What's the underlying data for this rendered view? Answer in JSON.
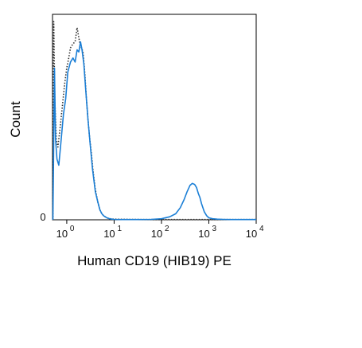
{
  "chart_data": {
    "type": "line",
    "title": "",
    "xlabel": "Human CD19 (HIB19) PE",
    "ylabel": "Count",
    "x_scale": "log",
    "xlim": [
      0.5,
      10000
    ],
    "ylim": [
      0,
      100
    ],
    "legend": "none",
    "x_ticks": [
      {
        "base": "10",
        "exp": "0",
        "value": 1
      },
      {
        "base": "10",
        "exp": "1",
        "value": 10
      },
      {
        "base": "10",
        "exp": "2",
        "value": 100
      },
      {
        "base": "10",
        "exp": "3",
        "value": 1000
      },
      {
        "base": "10",
        "exp": "4",
        "value": 10000
      }
    ],
    "y_ticks": [
      {
        "label": "0",
        "value": 0
      }
    ],
    "series": [
      {
        "color": "#1b7fd6",
        "style": "solid",
        "x": [
          0.51,
          0.55,
          0.58,
          0.62,
          0.68,
          0.75,
          0.85,
          0.95,
          1.05,
          1.2,
          1.35,
          1.5,
          1.65,
          1.8,
          1.95,
          2.1,
          2.3,
          2.5,
          2.8,
          3.1,
          3.5,
          4,
          4.5,
          5,
          5.5,
          6,
          6.5,
          7,
          7.5,
          8,
          9,
          10,
          15,
          30,
          60,
          100,
          150,
          200,
          250,
          300,
          350,
          400,
          450,
          500,
          550,
          600,
          650,
          700,
          750,
          800,
          900,
          1000,
          1200,
          1500,
          2000,
          3000,
          5000,
          10000
        ],
        "y": [
          0,
          75,
          40,
          30,
          27,
          38,
          52,
          60,
          73,
          78,
          80,
          78,
          84,
          83,
          88,
          84,
          77,
          65,
          50,
          38,
          25,
          14,
          9,
          5,
          3,
          2,
          1.5,
          1,
          0.8,
          0.5,
          0.3,
          0.2,
          0.1,
          0.1,
          0.2,
          0.5,
          1.5,
          3,
          6,
          10,
          14,
          17,
          18,
          17.5,
          16,
          13,
          11,
          8,
          6,
          4,
          2,
          1,
          0.5,
          0.3,
          0.2,
          0.1,
          0.1,
          0.1
        ]
      },
      {
        "color": "#333333",
        "style": "dotted",
        "x": [
          0.51,
          0.53,
          0.56,
          0.6,
          0.65,
          0.72,
          0.8,
          0.9,
          1.0,
          1.1,
          1.2,
          1.35,
          1.5,
          1.65,
          1.8,
          1.9,
          2.05,
          2.2,
          2.4,
          2.6,
          2.8,
          3.0,
          3.3,
          3.6,
          4,
          4.5,
          5,
          5.5,
          6,
          7,
          8,
          10,
          20,
          50,
          100,
          1000,
          10000
        ],
        "y": [
          0,
          98,
          60,
          40,
          36,
          45,
          55,
          67,
          75,
          80,
          85,
          87,
          88,
          95,
          90,
          87,
          85,
          83,
          73,
          60,
          50,
          42,
          33,
          24,
          15,
          9,
          5,
          3,
          2,
          1,
          0.5,
          0.3,
          0.2,
          0.1,
          0.1,
          0.1,
          0.1
        ]
      }
    ]
  }
}
